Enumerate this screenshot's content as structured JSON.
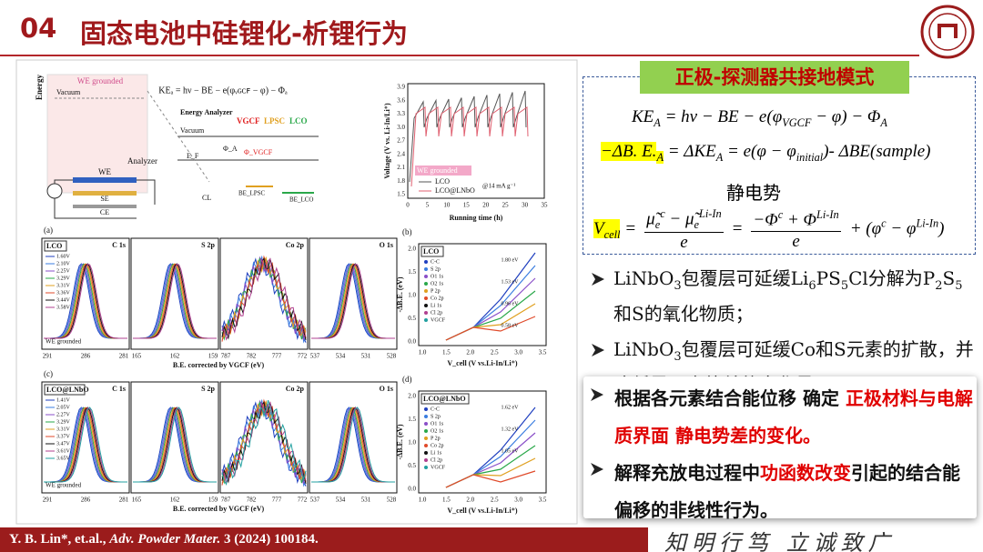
{
  "header": {
    "number": "04",
    "title": "固态电池中硅锂化-析锂行为"
  },
  "figure": {
    "schematic": {
      "energy": "Energy",
      "we_grounded": "WE grounded",
      "vacuum": "Vacuum",
      "analyzer": "Analyzer",
      "we": "WE",
      "se": "SE",
      "ce": "CE",
      "ke_eq": "KEₐ = hν − BE − e(φᵥɢᴄꜰ − φ) − Φₐ",
      "energy_analyzer": "Energy Analyzer",
      "vgcf": "VGCF",
      "lpsc": "LPSC",
      "lco": "LCO",
      "ef": "E_F",
      "cl": "CL",
      "phi_a": "Φ_A",
      "phi_vgcf": "Φ_VGCF",
      "be_lpsc": "BE_LPSC",
      "be_lco": "BE_LCO"
    },
    "voltage": {
      "ylabel": "Voltage (V vs. Li-In/Li⁺)",
      "xlabel": "Running time (h)",
      "yticks": [
        "3.9",
        "3.6",
        "3.3",
        "3.0",
        "2.7",
        "2.4",
        "2.1",
        "1.8",
        "1.5"
      ],
      "xticks": [
        0,
        5,
        10,
        15,
        20,
        25,
        30,
        35
      ],
      "legend": [
        "LCO",
        "LCO@LNbO"
      ],
      "tag": "WE grounded",
      "rate": "@14 mA g⁻¹"
    },
    "panels": [
      {
        "label": "(a)",
        "sample": "LCO",
        "spectra": [
          "C 1s",
          "S 2p",
          "Co 2p",
          "O 1s"
        ],
        "voltages": [
          "1.60V",
          "2.10V",
          "2.25V",
          "3.29V",
          "3.31V",
          "3.36V",
          "3.44V",
          "3.58V"
        ],
        "xticks": [
          [
            "291",
            "286",
            "281"
          ],
          [
            "165",
            "162",
            "159"
          ],
          [
            "787",
            "782",
            "777",
            "772"
          ],
          [
            "537",
            "534",
            "531",
            "528"
          ]
        ],
        "xlabel": "B.E. corrected by VGCF (eV)",
        "note": "WE grounded"
      },
      {
        "label": "(c)",
        "sample": "LCO@LNbO",
        "spectra": [
          "C 1s",
          "S 2p",
          "Co 2p",
          "O 1s"
        ],
        "voltages": [
          "1.41V",
          "2.05V",
          "2.27V",
          "3.29V",
          "3.31V",
          "3.37V",
          "3.47V",
          "3.61V",
          "3.65V"
        ],
        "xticks": [
          [
            "291",
            "286",
            "281"
          ],
          [
            "165",
            "162",
            "159"
          ],
          [
            "787",
            "782",
            "777",
            "772"
          ],
          [
            "537",
            "534",
            "531",
            "528"
          ]
        ],
        "xlabel": "B.E. corrected by VGCF (eV)",
        "note": "WE grounded"
      }
    ],
    "trends": [
      {
        "label": "(b)",
        "sample": "LCO",
        "legend": [
          "C-C",
          "S 2p",
          "O1 1s",
          "O2 1s",
          "P 2p",
          "Co 2p",
          "Li 1s",
          "Cl 2p",
          "VGCF"
        ],
        "annotations": [
          "1.80 eV",
          "1.53 eV",
          "0.96 eV",
          "0.58 eV"
        ],
        "ylabel": "-ΔB.E. (eV)",
        "xlabel": "V_cell (V vs.Li-In/Li⁺)",
        "xticks": [
          "1.0",
          "1.5",
          "2.0",
          "2.5",
          "3.0",
          "3.5"
        ],
        "yticks": [
          "0.0",
          "0.5",
          "1.0",
          "1.5",
          "2.0"
        ]
      },
      {
        "label": "(d)",
        "sample": "LCO@LNbO",
        "legend": [
          "C-C",
          "S 2p",
          "O1 1s",
          "O2 1s",
          "P 2p",
          "Co 2p",
          "Li 1s",
          "Cl 2p",
          "VGCF"
        ],
        "annotations": [
          "1.62 eV",
          "1.32 eV",
          "1.05 eV"
        ],
        "ylabel": "-ΔB.E. (eV)",
        "xlabel": "V_cell (V vs.Li-In/Li⁺)",
        "xticks": [
          "1.0",
          "1.5",
          "2.0",
          "2.5",
          "3.0",
          "3.5"
        ],
        "yticks": [
          "0.0",
          "0.5",
          "1.0",
          "1.5",
          "2.0"
        ]
      }
    ]
  },
  "mode_label": "正极-探测器共接地模式",
  "equations": {
    "ke": [
      {
        "text": "KE"
      },
      {
        "sub": "A"
      },
      {
        "text": " = hν − BE − e(φ"
      },
      {
        "sub": "VGCF"
      },
      {
        "text": " − φ) − Φ"
      },
      {
        "sub": "A"
      }
    ],
    "dbe": [
      {
        "text": "−ΔB. E."
      },
      {
        "sub": "A"
      },
      {
        "text": " = ΔKE"
      },
      {
        "sub": "A"
      },
      {
        "text": " = e(φ − φ"
      },
      {
        "sub": "initial"
      },
      {
        "text": ")- ΔBE(sample)"
      }
    ],
    "static_label": "静电势",
    "vcell": {
      "lhs": [
        {
          "text": "V"
        },
        {
          "sub": "cell"
        }
      ],
      "eq": "=",
      "num1": [
        {
          "text": "μ̃"
        },
        {
          "sub": "e"
        },
        {
          "sup": "c"
        },
        {
          "text": " − μ̃"
        },
        {
          "sub": "e"
        },
        {
          "sup": "Li-In"
        }
      ],
      "den1": "e",
      "eq2": "=",
      "num2": [
        {
          "text": "−Φ"
        },
        {
          "sup": "c"
        },
        {
          "text": " + Φ"
        },
        {
          "sup": "Li-In"
        }
      ],
      "den2": "e",
      "tail": [
        {
          "text": "+ (φ"
        },
        {
          "sup": "c"
        },
        {
          "text": " − φ"
        },
        {
          "sup": "Li-In"
        },
        {
          "text": ")"
        }
      ]
    }
  },
  "bullets": [
    [
      {
        "text": "LiNbO"
      },
      {
        "sub": "3"
      },
      {
        "text": "包覆层可延缓Li"
      },
      {
        "sub": "6"
      },
      {
        "text": "PS"
      },
      {
        "sub": "5"
      },
      {
        "text": "Cl分解为P"
      },
      {
        "sub": "2"
      },
      {
        "text": "S"
      },
      {
        "sub": "5"
      },
      {
        "text": "和S的氧化物质；"
      }
    ],
    [
      {
        "text": "LiNbO"
      },
      {
        "sub": "3"
      },
      {
        "text": "包覆层可延缓Co和S元素的扩散，并降低界面电势差的变化量。"
      }
    ]
  ],
  "highlight": [
    [
      {
        "text": "根据各元素结合能位移 确定 "
      },
      {
        "text": "正极材料与电解质界面 静电势差的变化。",
        "color": "#e00000"
      }
    ],
    [
      {
        "text": "解释充放电过程中"
      },
      {
        "text": "功函数改变",
        "color": "#e00000"
      },
      {
        "text": "引起的结合能偏移的非线性行为。"
      }
    ]
  ],
  "citation": [
    {
      "text": "Y. B. Lin*, et.al., "
    },
    {
      "text": "Adv. Powder Mater.",
      "italic": true
    },
    {
      "text": " 3 (2024) 100184."
    }
  ],
  "motto": "知明行笃 立诚致广"
}
